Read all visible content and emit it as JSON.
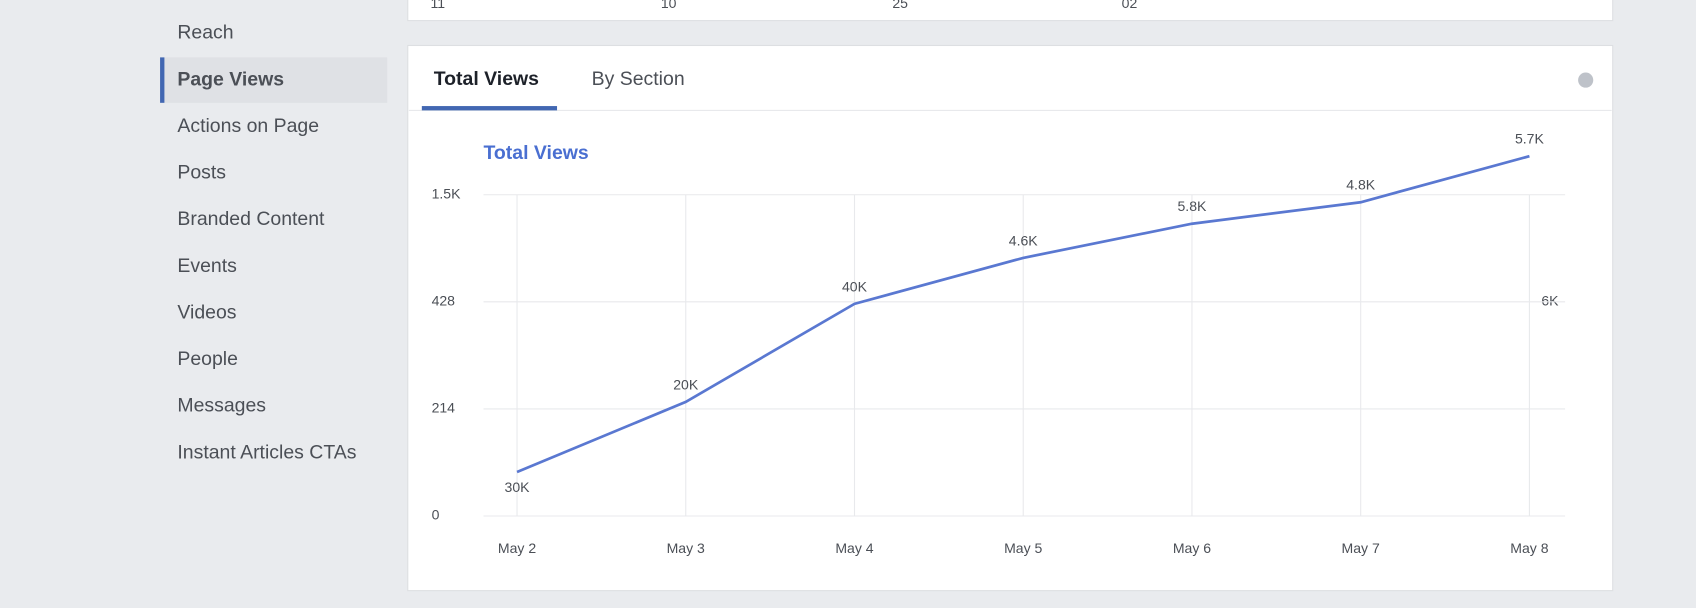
{
  "sidebar": {
    "items": [
      "Reach",
      "Page Views",
      "Actions on Page",
      "Posts",
      "Branded Content",
      "Events",
      "Videos",
      "People",
      "Messages",
      "Instant Articles CTAs"
    ],
    "active": 1
  },
  "previous_card_labels": [
    "11",
    "10",
    "25",
    "02"
  ],
  "tabs": [
    "Total Views",
    "By Section"
  ],
  "chart_data": {
    "type": "line",
    "title": "Total Views",
    "categories": [
      "May 2",
      "May 3",
      "May 4",
      "May 5",
      "May 6",
      "May 7",
      "May 8"
    ],
    "series": [
      {
        "name": "Total Views",
        "color": "#5a78d1",
        "values": [
          88,
          228,
          424,
          868,
          1210,
          1425,
          1886
        ]
      }
    ],
    "annotations": [
      "30K",
      "20K",
      "40K",
      "4.6K",
      "5.8K",
      "4.8K",
      "5.7K"
    ],
    "ylim": [
      0,
      2000
    ],
    "yticks": [
      0,
      214,
      428,
      {
        "value": 1500,
        "label": "1.5K"
      }
    ],
    "right_label": "6K",
    "grid": true
  }
}
